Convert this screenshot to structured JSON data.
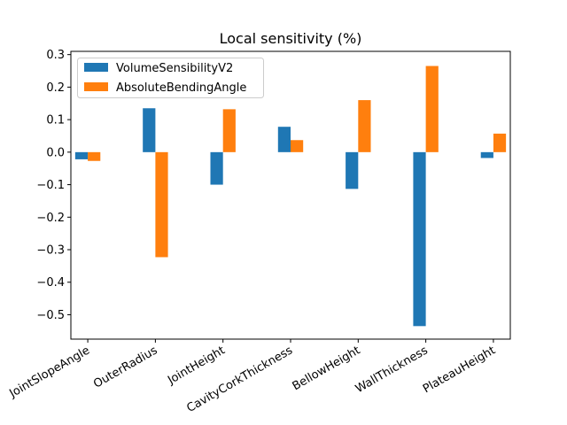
{
  "chart_data": {
    "type": "bar",
    "title": "Local sensitivity (%)",
    "xlabel": "",
    "ylabel": "",
    "categories": [
      "JointSlopeAngle",
      "OuterRadius",
      "JointHeight",
      "CavityCorkThickness",
      "BellowHeight",
      "WallThickness",
      "PlateauHeight"
    ],
    "series": [
      {
        "name": "VolumeSensibilityV2",
        "color": "#1f77b4",
        "values": [
          -0.022,
          0.135,
          -0.1,
          0.078,
          -0.113,
          -0.535,
          -0.018
        ]
      },
      {
        "name": "AbsoluteBendingAngle",
        "color": "#ff7f0e",
        "values": [
          -0.027,
          -0.323,
          0.132,
          0.037,
          0.16,
          0.265,
          0.057
        ]
      }
    ],
    "ylim": [
      -0.575,
      0.31
    ],
    "yticks": [
      0.3,
      0.2,
      0.1,
      0.0,
      -0.1,
      -0.2,
      -0.3,
      -0.4,
      -0.5
    ],
    "ytick_labels": [
      "0.3",
      "0.2",
      "0.1",
      "0.0",
      "−0.1",
      "−0.2",
      "−0.3",
      "−0.4",
      "−0.5"
    ],
    "grid": false,
    "legend_position": "upper-left"
  }
}
